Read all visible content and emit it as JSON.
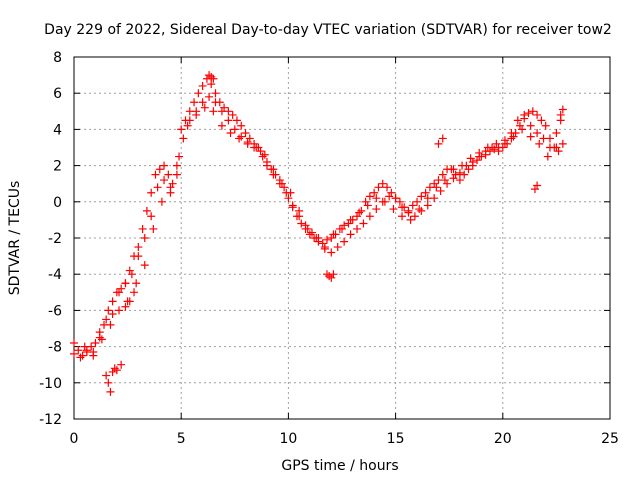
{
  "chart_data": {
    "type": "scatter",
    "title": "Day 229 of 2022, Sidereal Day-to-day VTEC variation (SDTVAR) for receiver tow2",
    "xlabel": "GPS time / hours",
    "ylabel": "SDTVAR / TECUs",
    "xlim": [
      0,
      25
    ],
    "ylim": [
      -12,
      8
    ],
    "xticks": [
      0,
      5,
      10,
      15,
      20,
      25
    ],
    "yticks": [
      -12,
      -10,
      -8,
      -6,
      -4,
      -2,
      0,
      2,
      4,
      6,
      8
    ],
    "grid": true,
    "marker": "plus",
    "color": "#ff0000",
    "series": [
      {
        "name": "SDTVAR",
        "x": [
          0.0,
          0.2,
          0.4,
          0.6,
          0.8,
          1.0,
          1.2,
          1.4,
          1.6,
          1.8,
          2.0,
          2.2,
          2.4,
          2.6,
          2.8,
          3.0,
          3.2,
          3.4,
          3.6,
          3.8,
          4.0,
          4.2,
          4.4,
          4.6,
          4.8,
          5.0,
          5.2,
          5.4,
          5.6,
          5.8,
          6.0,
          6.2,
          6.4,
          6.6,
          6.8,
          7.0,
          7.2,
          7.4,
          7.6,
          7.8,
          8.0,
          8.2,
          8.4,
          8.6,
          8.8,
          9.0,
          9.2,
          9.4,
          9.6,
          9.8,
          10.0,
          10.2,
          10.4,
          10.6,
          10.8,
          11.0,
          11.2,
          11.4,
          11.6,
          11.8,
          12.0,
          12.2,
          12.4,
          12.6,
          12.8,
          13.0,
          13.2,
          13.4,
          13.6,
          13.8,
          14.0,
          14.2,
          14.4,
          14.6,
          14.8,
          15.0,
          15.2,
          15.4,
          15.6,
          15.8,
          16.0,
          16.2,
          16.4,
          16.6,
          16.8,
          17.0,
          17.2,
          17.4,
          17.6,
          17.8,
          18.0,
          18.2,
          18.4,
          18.6,
          18.8,
          19.0,
          19.2,
          19.4,
          19.6,
          19.8,
          20.0,
          20.2,
          20.4,
          20.6,
          20.8,
          21.0,
          21.2,
          21.4,
          21.6,
          21.8,
          22.0,
          22.2,
          22.4,
          22.6,
          22.8,
          0.0,
          0.3,
          0.6,
          0.9,
          1.2,
          1.5,
          1.8,
          2.1,
          2.4,
          2.7,
          3.0,
          3.3,
          3.6,
          3.9,
          4.2,
          4.5,
          4.8,
          5.1,
          5.4,
          5.7,
          6.0,
          6.3,
          6.6,
          6.9,
          7.2,
          7.5,
          7.8,
          8.1,
          8.4,
          8.7,
          9.0,
          9.3,
          9.6,
          9.9,
          10.2,
          10.5,
          10.8,
          11.1,
          11.4,
          11.7,
          12.0,
          12.3,
          12.6,
          12.9,
          13.2,
          13.5,
          13.8,
          14.1,
          14.4,
          14.7,
          15.0,
          15.3,
          15.6,
          15.9,
          16.2,
          16.5,
          16.8,
          17.1,
          17.4,
          17.7,
          18.0,
          18.3,
          18.6,
          18.9,
          19.2,
          19.5,
          19.8,
          20.1,
          20.4,
          20.7,
          21.0,
          21.3,
          21.6,
          21.9,
          22.2,
          22.5,
          22.7,
          0.5,
          0.9,
          1.3,
          1.7,
          2.1,
          2.5,
          2.9,
          3.3,
          3.7,
          4.1,
          4.5,
          4.9,
          5.3,
          5.7,
          6.1,
          6.5,
          6.9,
          7.3,
          7.7,
          8.1,
          8.5,
          8.9,
          9.3,
          9.7,
          10.1,
          10.5,
          10.9,
          11.3,
          11.7,
          12.1,
          12.5,
          12.9,
          13.3,
          13.7,
          14.1,
          14.5,
          14.9,
          15.3,
          15.7,
          16.1,
          16.5,
          16.9,
          17.3,
          17.7,
          18.1,
          18.5,
          18.9,
          19.3,
          19.7,
          20.1,
          20.5,
          20.9,
          21.3,
          21.7,
          22.1,
          22.5,
          1.5,
          1.6,
          1.7,
          1.8,
          1.9,
          2.0,
          2.2,
          2.4,
          2.6,
          2.8,
          11.8,
          11.9,
          12.0,
          12.1,
          6.3,
          6.4,
          6.5,
          21.5,
          21.6,
          17.0,
          17.2,
          22.7,
          22.8
        ],
        "y": [
          -8.4,
          -8.2,
          -8.5,
          -8.3,
          -8.0,
          -7.8,
          -7.2,
          -6.8,
          -6.0,
          -5.5,
          -5.0,
          -4.8,
          -4.5,
          -3.8,
          -3.0,
          -2.5,
          -1.5,
          -0.5,
          0.5,
          1.5,
          1.8,
          2.0,
          1.5,
          1.0,
          2.0,
          4.0,
          4.5,
          5.0,
          5.5,
          6.0,
          6.4,
          6.8,
          6.5,
          6.0,
          5.5,
          5.2,
          5.0,
          4.8,
          4.5,
          4.2,
          3.8,
          3.5,
          3.2,
          3.0,
          2.5,
          2.2,
          1.8,
          1.5,
          1.2,
          0.8,
          0.2,
          -0.3,
          -0.8,
          -1.2,
          -1.5,
          -1.8,
          -2.0,
          -2.2,
          -2.3,
          -2.1,
          -2.0,
          -1.8,
          -1.5,
          -1.3,
          -1.2,
          -1.0,
          -0.8,
          -0.5,
          0.0,
          0.3,
          0.5,
          0.8,
          1.0,
          0.8,
          0.5,
          0.2,
          0.0,
          -0.3,
          -0.5,
          -0.2,
          0.0,
          0.3,
          0.5,
          0.8,
          1.0,
          1.2,
          1.5,
          1.8,
          1.8,
          1.5,
          1.2,
          1.5,
          1.8,
          2.0,
          2.3,
          2.5,
          2.6,
          2.8,
          2.9,
          3.0,
          3.0,
          3.2,
          3.5,
          3.8,
          4.2,
          4.6,
          4.9,
          5.0,
          4.8,
          4.5,
          4.2,
          3.5,
          3.0,
          2.8,
          3.2,
          -7.8,
          -8.6,
          -8.2,
          -8.5,
          -7.5,
          -6.5,
          -6.2,
          -5.0,
          -4.5,
          -4.0,
          -3.0,
          -2.0,
          -0.8,
          0.8,
          1.2,
          0.5,
          1.5,
          3.5,
          4.5,
          5.0,
          5.5,
          5.8,
          5.5,
          5.0,
          4.5,
          4.0,
          3.6,
          3.2,
          3.0,
          2.8,
          2.0,
          1.5,
          1.0,
          0.5,
          -0.2,
          -0.8,
          -1.3,
          -1.7,
          -2.0,
          -2.5,
          -2.8,
          -2.5,
          -2.2,
          -1.8,
          -1.5,
          -1.2,
          -0.8,
          -0.4,
          0.0,
          0.3,
          0.2,
          -0.3,
          -0.6,
          -0.8,
          -0.5,
          -0.2,
          0.2,
          0.6,
          1.0,
          1.3,
          1.6,
          2.0,
          2.2,
          2.5,
          2.8,
          3.0,
          2.8,
          3.2,
          3.8,
          4.5,
          4.8,
          4.2,
          3.8,
          3.5,
          3.0,
          3.8,
          4.5,
          -8.0,
          -8.3,
          -7.6,
          -6.8,
          -6.0,
          -5.5,
          -4.5,
          -3.5,
          -1.5,
          0.0,
          0.8,
          2.5,
          4.2,
          4.8,
          5.2,
          5.0,
          4.2,
          3.8,
          3.5,
          3.3,
          3.0,
          2.6,
          1.8,
          1.0,
          0.5,
          -0.5,
          -1.5,
          -2.0,
          -2.6,
          -1.8,
          -1.5,
          -1.0,
          -0.6,
          -0.2,
          0.2,
          0.0,
          -0.4,
          -0.8,
          -1.0,
          -0.4,
          0.2,
          0.8,
          1.2,
          1.8,
          2.0,
          2.4,
          2.7,
          3.0,
          3.2,
          3.4,
          3.6,
          4.0,
          3.6,
          3.2,
          2.5,
          3.0,
          -9.6,
          -10.0,
          -10.5,
          -9.4,
          -9.2,
          -9.3,
          -9.0,
          -5.8,
          -5.5,
          -5.0,
          -4.0,
          -4.1,
          -4.2,
          -4.0,
          7.0,
          6.9,
          6.8,
          0.7,
          0.9,
          3.2,
          3.5,
          4.8,
          5.1
        ]
      }
    ]
  }
}
